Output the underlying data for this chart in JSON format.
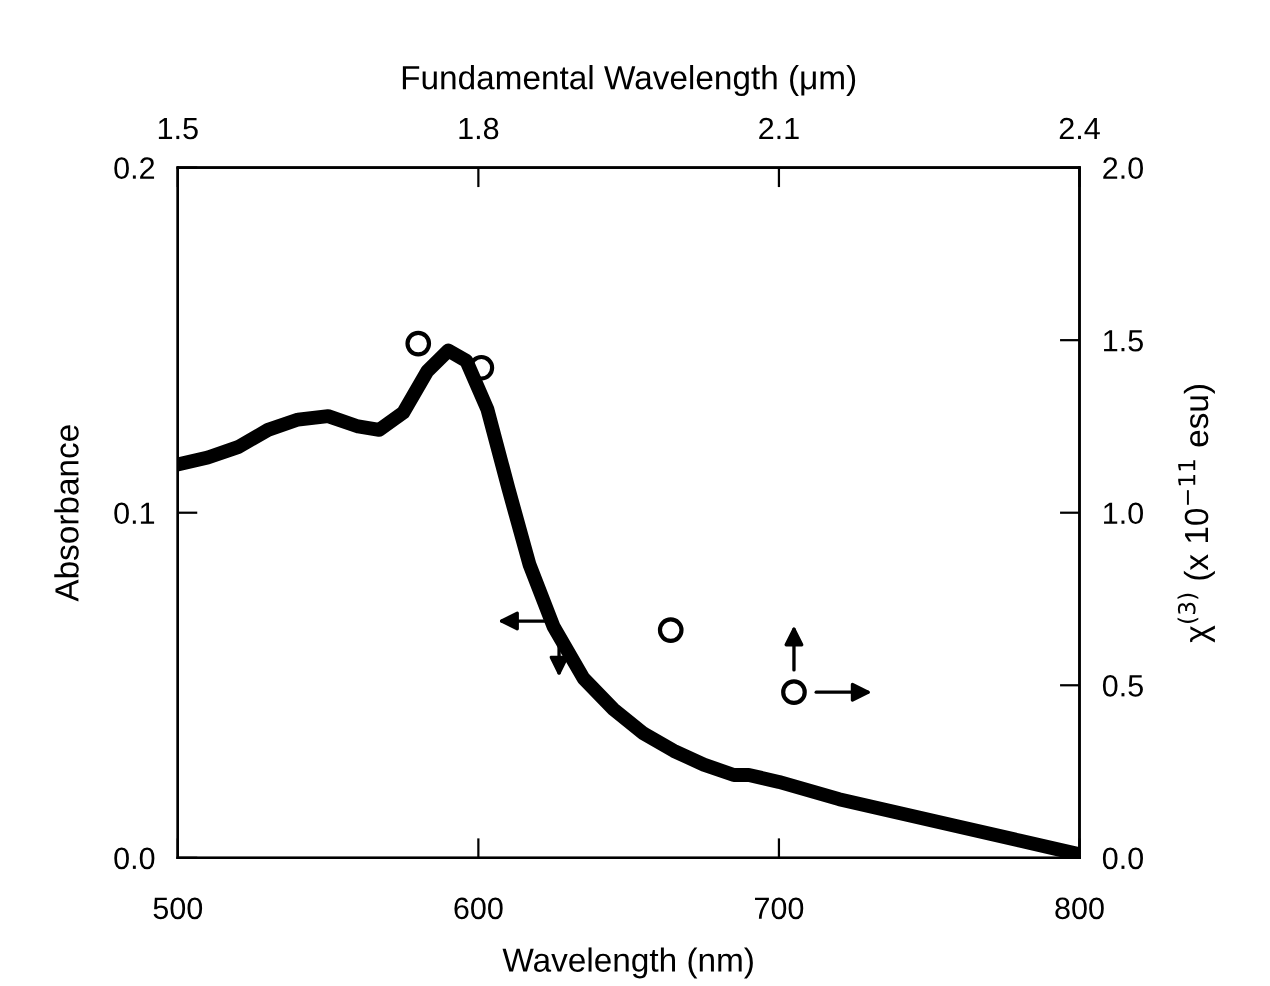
{
  "chart_data": {
    "type": "line",
    "xlabel": "Wavelength (nm)",
    "ylabel": "Absorbance",
    "y2label": "χ$^{(3)}$ (x 10$^{−11}$ esu)",
    "x2label": "Fundamental Wavelength (μm)",
    "xlim": [
      500,
      800
    ],
    "xticks": [
      500,
      600,
      700,
      800
    ],
    "ylim": [
      0,
      0.2
    ],
    "yticks": [
      {
        "value": 0,
        "label": "0.0"
      },
      0.1,
      0.2
    ],
    "y2lim": [
      0,
      2.0
    ],
    "y2ticks": [
      {
        "value": 0,
        "label": "0.0"
      },
      0.5,
      {
        "value": 1,
        "label": "1.0"
      },
      1.5,
      {
        "value": 2,
        "label": "2.0"
      }
    ],
    "x2lim": [
      1.5,
      2.4
    ],
    "x2ticks": [
      1.5,
      1.8,
      2.1,
      2.4
    ],
    "grid": false,
    "legend": false,
    "series": [
      {
        "color": "#000000",
        "marker": "none",
        "line_style": "solid",
        "x": [
          500,
          510,
          520,
          530,
          540,
          550,
          560,
          567,
          575,
          583,
          590,
          596,
          603,
          610,
          617,
          625,
          635,
          645,
          655,
          665,
          675,
          685,
          690,
          695,
          700,
          720,
          740,
          760,
          780,
          800
        ],
        "values": [
          0.114,
          0.116,
          0.119,
          0.124,
          0.127,
          0.128,
          0.125,
          0.124,
          0.129,
          0.141,
          0.147,
          0.144,
          0.13,
          0.107,
          0.085,
          0.067,
          0.052,
          0.043,
          0.036,
          0.031,
          0.027,
          0.024,
          0.024,
          0.023,
          0.022,
          0.017,
          0.013,
          0.009,
          0.005,
          0.001
        ]
      },
      {
        "type": "scatter",
        "axis": "y2",
        "color": "#000000",
        "marker": "circle",
        "x": [
          580,
          601,
          664,
          705
        ],
        "values": [
          1.49,
          1.42,
          0.66,
          0.48
        ]
      }
    ]
  }
}
